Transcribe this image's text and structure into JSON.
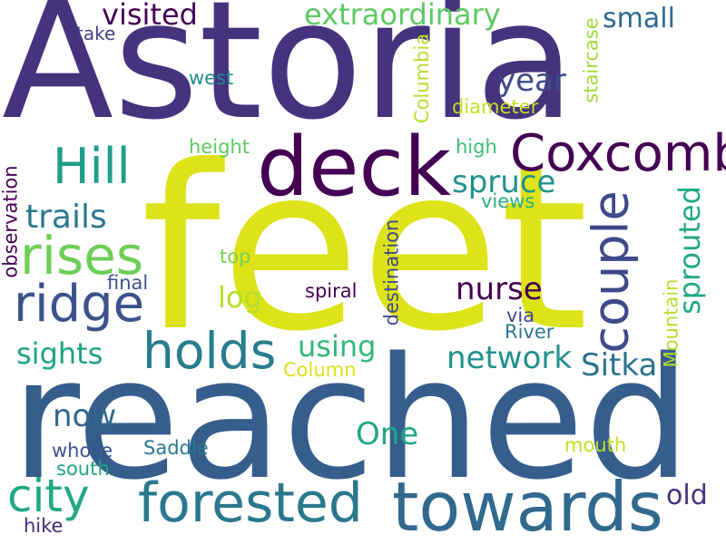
{
  "words": [
    {
      "text": "Astoria",
      "color": "#46337e",
      "orientation": "horizontal"
    },
    {
      "text": "feet",
      "color": "#dde318",
      "orientation": "horizontal"
    },
    {
      "text": "reached",
      "color": "#355e8d",
      "orientation": "horizontal"
    },
    {
      "text": "deck",
      "color": "#440154",
      "orientation": "horizontal"
    },
    {
      "text": "Coxcomb",
      "color": "#440154",
      "orientation": "horizontal"
    },
    {
      "text": "towards",
      "color": "#31688e",
      "orientation": "horizontal"
    },
    {
      "text": "Hill",
      "color": "#1f9e89",
      "orientation": "horizontal"
    },
    {
      "text": "rises",
      "color": "#6ece58",
      "orientation": "horizontal"
    },
    {
      "text": "ridge",
      "color": "#3b528b",
      "orientation": "horizontal"
    },
    {
      "text": "holds",
      "color": "#287d8e",
      "orientation": "horizontal"
    },
    {
      "text": "couple",
      "color": "#3e4a89",
      "orientation": "vertical"
    },
    {
      "text": "forested",
      "color": "#2a788e",
      "orientation": "horizontal"
    },
    {
      "text": "city",
      "color": "#22a884",
      "orientation": "horizontal"
    },
    {
      "text": "visited",
      "color": "#440154",
      "orientation": "horizontal"
    },
    {
      "text": "extraordinary",
      "color": "#5ec962",
      "orientation": "horizontal"
    },
    {
      "text": "small",
      "color": "#31688e",
      "orientation": "horizontal"
    },
    {
      "text": "year",
      "color": "#3e4a89",
      "orientation": "horizontal"
    },
    {
      "text": "spruce",
      "color": "#21918c",
      "orientation": "horizontal"
    },
    {
      "text": "sprouted",
      "color": "#22a884",
      "orientation": "vertical"
    },
    {
      "text": "nurse",
      "color": "#440154",
      "orientation": "horizontal"
    },
    {
      "text": "trails",
      "color": "#2a788e",
      "orientation": "horizontal"
    },
    {
      "text": "network",
      "color": "#21918c",
      "orientation": "horizontal"
    },
    {
      "text": "Sitka",
      "color": "#2c728e",
      "orientation": "horizontal"
    },
    {
      "text": "using",
      "color": "#35b779",
      "orientation": "horizontal"
    },
    {
      "text": "sights",
      "color": "#1fa187",
      "orientation": "horizontal"
    },
    {
      "text": "now",
      "color": "#30678d",
      "orientation": "horizontal"
    },
    {
      "text": "One",
      "color": "#21a685",
      "orientation": "horizontal"
    },
    {
      "text": "old",
      "color": "#46327e",
      "orientation": "horizontal"
    },
    {
      "text": "log",
      "color": "#b5de2b",
      "orientation": "horizontal"
    },
    {
      "text": "Mountain",
      "color": "#b5de2b",
      "orientation": "vertical"
    },
    {
      "text": "staircase",
      "color": "#a0da39",
      "orientation": "vertical"
    },
    {
      "text": "Columbia",
      "color": "#b5de2b",
      "orientation": "vertical"
    },
    {
      "text": "observation",
      "color": "#440154",
      "orientation": "vertical"
    },
    {
      "text": "destination",
      "color": "#3e4a89",
      "orientation": "vertical"
    },
    {
      "text": "take",
      "color": "#424086",
      "orientation": "horizontal"
    },
    {
      "text": "west",
      "color": "#218e8d",
      "orientation": "horizontal"
    },
    {
      "text": "diameter",
      "color": "#c2df23",
      "orientation": "horizontal"
    },
    {
      "text": "height",
      "color": "#5ec962",
      "orientation": "horizontal"
    },
    {
      "text": "high",
      "color": "#3dbc74",
      "orientation": "horizontal"
    },
    {
      "text": "views",
      "color": "#29af7f",
      "orientation": "horizontal"
    },
    {
      "text": "top",
      "color": "#7ad151",
      "orientation": "horizontal"
    },
    {
      "text": "final",
      "color": "#3b528b",
      "orientation": "horizontal"
    },
    {
      "text": "spiral",
      "color": "#440154",
      "orientation": "horizontal"
    },
    {
      "text": "via",
      "color": "#3e4a89",
      "orientation": "horizontal"
    },
    {
      "text": "River",
      "color": "#2a788e",
      "orientation": "horizontal"
    },
    {
      "text": "Column",
      "color": "#dde318",
      "orientation": "horizontal"
    },
    {
      "text": "whose",
      "color": "#3b528b",
      "orientation": "horizontal"
    },
    {
      "text": "Saddle",
      "color": "#2a788e",
      "orientation": "horizontal"
    },
    {
      "text": "south",
      "color": "#20a386",
      "orientation": "horizontal"
    },
    {
      "text": "mouth",
      "color": "#c2df23",
      "orientation": "horizontal"
    },
    {
      "text": "hike",
      "color": "#472c7a",
      "orientation": "horizontal"
    }
  ]
}
